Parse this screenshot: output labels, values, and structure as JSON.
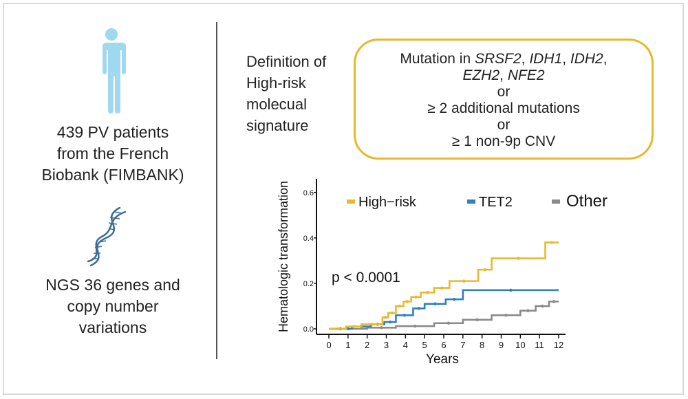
{
  "left": {
    "patients_line1": "439 PV patients",
    "patients_line2": "from the French",
    "patients_line3": "Biobank (FIMBANK)",
    "ngs_line1": "NGS 36 genes and",
    "ngs_line2": "copy number",
    "ngs_line3": "variations"
  },
  "definition": {
    "label_line1": "Definition of",
    "label_line2": "High-risk",
    "label_line3": "molecual",
    "label_line4": "signature",
    "mutation_prefix": "Mutation in ",
    "gene1": "SRSF2",
    "gene2": "IDH1",
    "gene3": "IDH2",
    "gene4": "EZH2",
    "gene5": "NFE2",
    "sep1": ", ",
    "sep2": ", ",
    "sep3": ",",
    "sep4": ", ",
    "or1": "or",
    "criterion2": "≥ 2 additional mutations",
    "or2": "or",
    "criterion3": "≥ 1 non-9p CNV"
  },
  "colors": {
    "high_risk": "#e8b92c",
    "tet2": "#2f7fc1",
    "other": "#8a8a8a",
    "box_border": "#e6b92a"
  },
  "chart_data": {
    "type": "line",
    "title": "",
    "xlabel": "Years",
    "ylabel": "Hematologic transformation",
    "xlim": [
      0,
      12.4
    ],
    "ylim": [
      0,
      0.66
    ],
    "x_ticks": [
      "0",
      "1",
      "2",
      "3",
      "4",
      "5",
      "6",
      "7",
      "8",
      "9",
      "10",
      "11",
      "12"
    ],
    "y_ticks": [
      "0.0",
      "0.2",
      "0.4",
      "0.6"
    ],
    "y_tick_values": [
      0.0,
      0.2,
      0.4,
      0.6
    ],
    "annotation": "p < 0.0001",
    "legend_position": "top",
    "series": [
      {
        "name": "High−risk",
        "x": [
          0,
          0.9,
          1.7,
          2.8,
          3.1,
          3.5,
          3.9,
          4.3,
          4.8,
          5.5,
          6.3,
          7.8,
          8.5,
          11.3,
          12
        ],
        "y": [
          0,
          0.01,
          0.02,
          0.05,
          0.07,
          0.1,
          0.12,
          0.14,
          0.16,
          0.18,
          0.21,
          0.26,
          0.31,
          0.38,
          0.38
        ]
      },
      {
        "name": "TET2",
        "x": [
          0,
          1.2,
          2.2,
          2.9,
          3.5,
          4.4,
          5.0,
          6.1,
          7.0,
          12
        ],
        "y": [
          0,
          0.01,
          0.02,
          0.03,
          0.06,
          0.09,
          0.11,
          0.13,
          0.17,
          0.17
        ]
      },
      {
        "name": "Other",
        "x": [
          0,
          2.0,
          3.5,
          5.5,
          7.0,
          8.5,
          10.0,
          10.8,
          11.5,
          12
        ],
        "y": [
          0,
          0.005,
          0.012,
          0.025,
          0.04,
          0.06,
          0.08,
          0.1,
          0.12,
          0.12
        ]
      }
    ]
  }
}
